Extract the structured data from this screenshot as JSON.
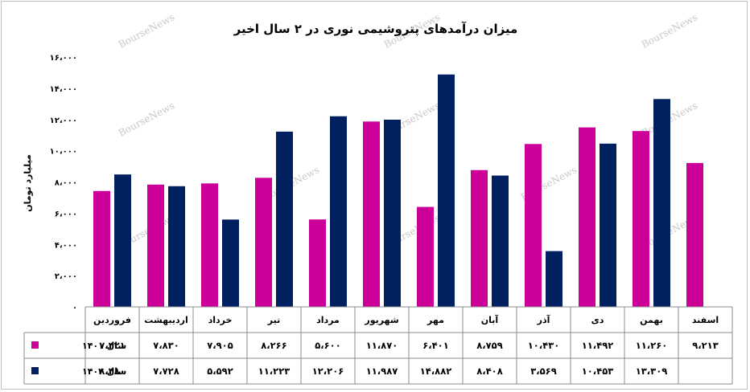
{
  "chart_data": {
    "type": "bar",
    "title": "میزان درآمدهای پتروشیمی نوری در ۲ سال اخیر",
    "ylabel": "میلیارد تومان",
    "ylim": [
      0,
      16000
    ],
    "yticks": [
      0,
      2000,
      4000,
      6000,
      8000,
      10000,
      12000,
      14000,
      16000
    ],
    "ytick_labels": [
      "۰",
      "۲،۰۰۰",
      "۴،۰۰۰",
      "۶،۰۰۰",
      "۸،۰۰۰",
      "۱۰،۰۰۰",
      "۱۲،۰۰۰",
      "۱۴،۰۰۰",
      "۱۶،۰۰۰"
    ],
    "categories": [
      "فروردین",
      "اردیبهشت",
      "خرداد",
      "تیر",
      "مرداد",
      "شهریور",
      "مهر",
      "آبان",
      "آذر",
      "دی",
      "بهمن",
      "اسفند"
    ],
    "series": [
      {
        "name": "سال ۱۴۰۱",
        "color": "#cc0099",
        "values": [
          7421,
          7830,
          7905,
          8266,
          5600,
          11870,
          6401,
          8759,
          10430,
          11492,
          11260,
          9213
        ],
        "labels": [
          "۷،۴۲۱",
          "۷،۸۳۰",
          "۷،۹۰۵",
          "۸،۲۶۶",
          "۵،۶۰۰",
          "۱۱،۸۷۰",
          "۶،۴۰۱",
          "۸،۷۵۹",
          "۱۰،۴۳۰",
          "۱۱،۴۹۲",
          "۱۱،۲۶۰",
          "۹،۲۱۳"
        ]
      },
      {
        "name": "سال ۱۴۰۲",
        "color": "#002060",
        "values": [
          8480,
          7728,
          5592,
          11223,
          12206,
          11987,
          14882,
          8408,
          3569,
          10453,
          13309,
          null
        ],
        "labels": [
          "۸،۴۸۰",
          "۷،۷۲۸",
          "۵،۵۹۲",
          "۱۱،۲۲۳",
          "۱۲،۲۰۶",
          "۱۱،۹۸۷",
          "۱۴،۸۸۲",
          "۸،۴۰۸",
          "۳،۵۶۹",
          "۱۰،۴۵۳",
          "۱۳،۳۰۹",
          ""
        ]
      }
    ],
    "grid": false,
    "legend": "data-table-left",
    "watermark": "BourseNews"
  }
}
